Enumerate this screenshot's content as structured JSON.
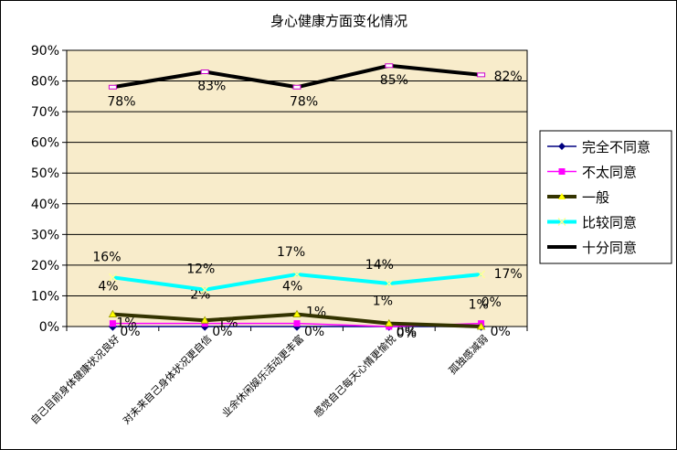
{
  "chart_data": {
    "type": "line",
    "title": "身心健康方面变化情况",
    "categories": [
      "自己目前身体健康状况良好",
      "对未来自己身体状况更自信",
      "业余休闲娱乐活动更丰富",
      "感觉自己每天心情更愉悦",
      "孤独感减弱"
    ],
    "y_ticks": [
      "0%",
      "10%",
      "20%",
      "30%",
      "40%",
      "50%",
      "60%",
      "70%",
      "80%",
      "90%"
    ],
    "ylim": [
      0,
      90
    ],
    "grid": true,
    "legend_position": "right",
    "colors": {
      "plot_bg": "#f8eccb",
      "grid": "#000000"
    },
    "series": [
      {
        "name": "完全不同意",
        "values": [
          0,
          0,
          0,
          0,
          0
        ],
        "labels": [
          "0%",
          "0%",
          "0%",
          "0%",
          "0%"
        ],
        "color": "#000080",
        "marker": "diamond",
        "width": 1.5
      },
      {
        "name": "不太同意",
        "values": [
          1,
          1,
          1,
          0,
          1
        ],
        "labels": [
          "1%",
          "1%",
          "1%",
          "0%",
          "1%"
        ],
        "color": "#ff00ff",
        "marker": "square",
        "width": 1.5
      },
      {
        "name": "一般",
        "values": [
          4,
          2,
          4,
          1,
          0
        ],
        "labels": [
          "4%",
          "2%",
          "4%",
          "1%",
          "0%"
        ],
        "color": "#333300",
        "marker": "triangle",
        "width": 4
      },
      {
        "name": "比较同意",
        "values": [
          16,
          12,
          17,
          14,
          17
        ],
        "labels": [
          "16%",
          "12%",
          "17%",
          "14%",
          "17%"
        ],
        "color": "#00ffff",
        "marker": "x",
        "width": 4
      },
      {
        "name": "十分同意",
        "values": [
          78,
          83,
          78,
          85,
          82
        ],
        "labels": [
          "78%",
          "83%",
          "78%",
          "85%",
          "82%"
        ],
        "color": "#000000",
        "marker": "bar",
        "width": 4
      }
    ]
  }
}
